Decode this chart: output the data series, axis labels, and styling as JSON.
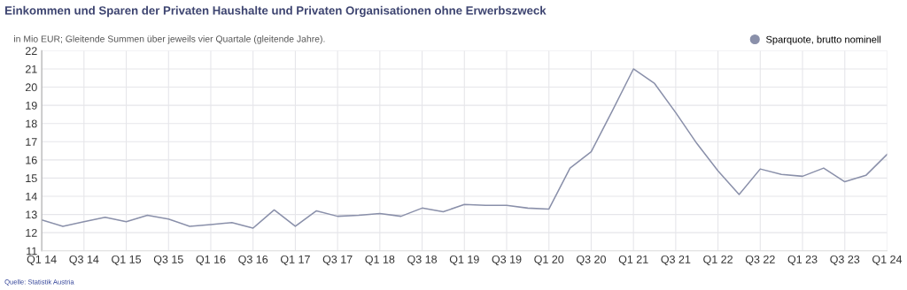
{
  "chart_data": {
    "type": "line",
    "title": "Einkommen und Sparen der Privaten Haushalte und Privaten Organisationen ohne Erwerbszweck",
    "subtitle": "in Mio EUR; Gleitende Summen über jeweils vier Quartale (gleitende Jahre).",
    "categories": [
      "Q1 14",
      null,
      "Q3 14",
      null,
      "Q1 15",
      null,
      "Q3 15",
      null,
      "Q1 16",
      null,
      "Q3 16",
      null,
      "Q1 17",
      null,
      "Q3 17",
      null,
      "Q1 18",
      null,
      "Q3 18",
      null,
      "Q1 19",
      null,
      "Q3 19",
      null,
      "Q1 20",
      null,
      "Q3 20",
      null,
      "Q1 21",
      null,
      "Q3 21",
      null,
      "Q1 22",
      null,
      "Q3 22",
      null,
      "Q1 23",
      null,
      "Q3 23",
      null,
      "Q1 24"
    ],
    "series": [
      {
        "name": "Sparquote, brutto nominell",
        "color": "#8a90aa",
        "values": [
          12.7,
          12.35,
          12.6,
          12.85,
          12.6,
          12.95,
          12.75,
          12.35,
          12.45,
          12.55,
          12.25,
          13.25,
          12.35,
          13.2,
          12.9,
          12.95,
          13.05,
          12.9,
          13.35,
          13.15,
          13.55,
          13.5,
          13.5,
          13.35,
          13.3,
          15.55,
          16.45,
          18.7,
          21.0,
          20.2,
          18.6,
          16.9,
          15.4,
          14.1,
          15.5,
          15.2,
          15.1,
          15.55,
          14.8,
          15.15,
          16.3
        ]
      }
    ],
    "ylim": [
      11,
      22
    ],
    "yticks": [
      11,
      12,
      13,
      14,
      15,
      16,
      17,
      18,
      19,
      20,
      21,
      22
    ],
    "grid": true,
    "legend": "top right",
    "marker": "none",
    "line_style": "solid",
    "annotations": [
      "Quelle: Statistik Austria"
    ]
  }
}
